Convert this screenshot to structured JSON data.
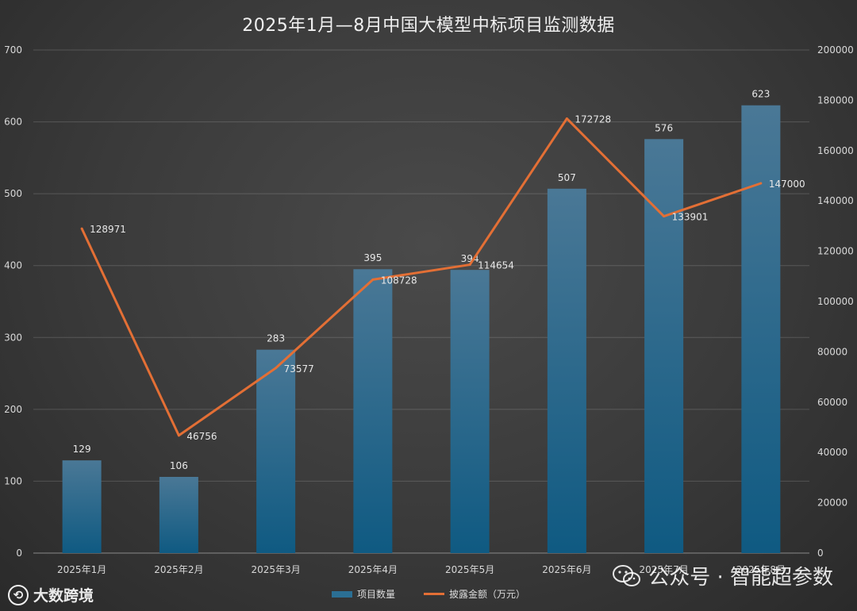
{
  "chart_data": {
    "type": "bar",
    "title": "2025年1月—8月中国大模型中标项目监测数据",
    "categories": [
      "2025年1月",
      "2025年2月",
      "2025年3月",
      "2025年4月",
      "2025年5月",
      "2025年6月",
      "2025年7月",
      "2025年8月"
    ],
    "series": [
      {
        "name": "项目数量",
        "type": "bar",
        "axis": "left",
        "color": "#2b6f94",
        "values": [
          129,
          106,
          283,
          395,
          394,
          507,
          576,
          623
        ]
      },
      {
        "name": "披露金额（万元）",
        "type": "line",
        "axis": "right",
        "color": "#e36f35",
        "values": [
          128971,
          46756,
          73577,
          108728,
          114654,
          172728,
          133901,
          147000
        ]
      }
    ],
    "ylim_left": [
      0,
      700
    ],
    "yticks_left": [
      0,
      100,
      200,
      300,
      400,
      500,
      600,
      700
    ],
    "ylim_right": [
      0,
      200000
    ],
    "yticks_right": [
      0,
      20000,
      40000,
      60000,
      80000,
      100000,
      120000,
      140000,
      160000,
      180000,
      200000
    ],
    "grid": true,
    "legend_position": "bottom"
  },
  "legend": {
    "bar_label": "项目数量",
    "line_label": "披露金额（万元）"
  },
  "watermarks": {
    "left_brand": "大数跨境",
    "right_brand": "公众号 · 智能超参数"
  }
}
